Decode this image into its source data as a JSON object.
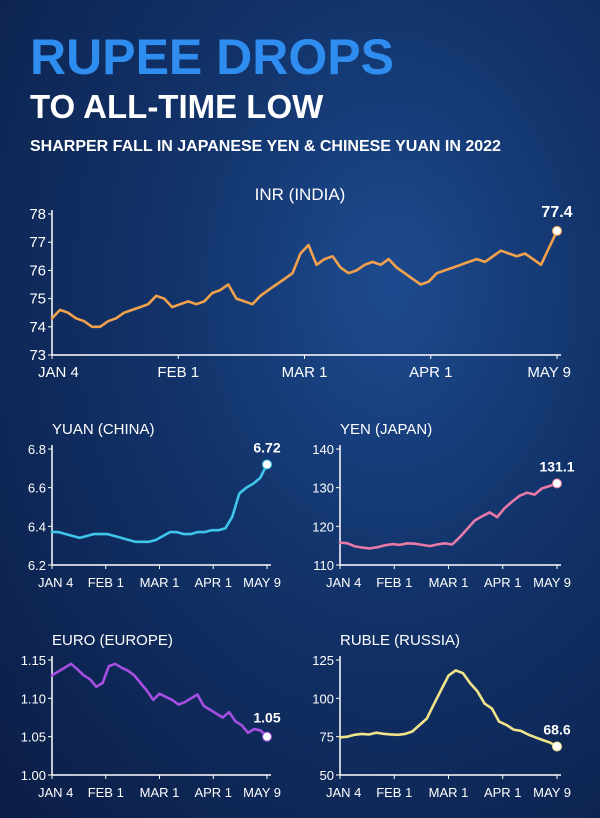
{
  "header": {
    "title": "RUPEE DROPS",
    "subtitle": "TO ALL-TIME LOW",
    "tagline": "SHARPER FALL IN JAPANESE YEN & CHINESE YUAN IN 2022"
  },
  "chart_data": [
    {
      "type": "line",
      "title": "INR (INDIA)",
      "color": "#f2a24c",
      "ylim": [
        73,
        78
      ],
      "yticks": [
        73,
        74,
        75,
        76,
        77,
        78
      ],
      "xticks": [
        "JAN 4",
        "FEB 1",
        "MAR 1",
        "APR 1",
        "MAY 9"
      ],
      "end_label": "77.4",
      "values": [
        74.3,
        74.6,
        74.5,
        74.3,
        74.2,
        74.0,
        74.0,
        74.2,
        74.3,
        74.5,
        74.6,
        74.7,
        74.8,
        75.1,
        75.0,
        74.7,
        74.8,
        74.9,
        74.8,
        74.9,
        75.2,
        75.3,
        75.5,
        75.0,
        74.9,
        74.8,
        75.1,
        75.3,
        75.5,
        75.7,
        75.9,
        76.6,
        76.9,
        76.2,
        76.4,
        76.5,
        76.1,
        75.9,
        76.0,
        76.2,
        76.3,
        76.2,
        76.4,
        76.1,
        75.9,
        75.7,
        75.5,
        75.6,
        75.9,
        76.0,
        76.1,
        76.2,
        76.3,
        76.4,
        76.3,
        76.5,
        76.7,
        76.6,
        76.5,
        76.6,
        76.4,
        76.2,
        76.8,
        77.4
      ]
    },
    {
      "type": "line",
      "title": "YUAN (CHINA)",
      "color": "#3fc6ea",
      "ylim": [
        6.2,
        6.8
      ],
      "yticks": [
        6.2,
        6.4,
        6.6,
        6.8
      ],
      "xticks": [
        "JAN 4",
        "FEB 1",
        "MAR 1",
        "APR 1",
        "MAY 9"
      ],
      "end_label": "6.72",
      "values": [
        6.37,
        6.37,
        6.36,
        6.35,
        6.34,
        6.35,
        6.36,
        6.36,
        6.36,
        6.35,
        6.34,
        6.33,
        6.32,
        6.32,
        6.32,
        6.33,
        6.35,
        6.37,
        6.37,
        6.36,
        6.36,
        6.37,
        6.37,
        6.38,
        6.38,
        6.39,
        6.45,
        6.57,
        6.6,
        6.62,
        6.65,
        6.72
      ]
    },
    {
      "type": "line",
      "title": "YEN (JAPAN)",
      "color": "#e97aa8",
      "ylim": [
        110,
        140
      ],
      "yticks": [
        110,
        120,
        130,
        140
      ],
      "xticks": [
        "JAN 4",
        "FEB 1",
        "MAR 1",
        "APR 1",
        "MAY 9"
      ],
      "end_label": "131.1",
      "values": [
        115.8,
        115.6,
        114.8,
        114.5,
        114.3,
        114.6,
        115.1,
        115.4,
        115.2,
        115.6,
        115.5,
        115.2,
        114.9,
        115.3,
        115.6,
        115.3,
        117.2,
        119.3,
        121.5,
        122.6,
        123.6,
        122.4,
        124.7,
        126.4,
        127.9,
        128.7,
        128.2,
        129.8,
        130.4,
        131.1
      ]
    },
    {
      "type": "line",
      "title": "EURO (EUROPE)",
      "color": "#a64fe3",
      "ylim": [
        1.0,
        1.15
      ],
      "yticks": [
        1.0,
        1.05,
        1.1,
        1.15
      ],
      "xticks": [
        "JAN 4",
        "FEB 1",
        "MAR 1",
        "APR 1",
        "MAY 9"
      ],
      "end_label": "1.05",
      "values": [
        1.13,
        1.135,
        1.14,
        1.145,
        1.138,
        1.13,
        1.125,
        1.115,
        1.12,
        1.142,
        1.145,
        1.14,
        1.136,
        1.13,
        1.12,
        1.11,
        1.098,
        1.106,
        1.102,
        1.098,
        1.092,
        1.095,
        1.1,
        1.105,
        1.09,
        1.085,
        1.08,
        1.075,
        1.082,
        1.07,
        1.065,
        1.055,
        1.06,
        1.058,
        1.05
      ]
    },
    {
      "type": "line",
      "title": "RUBLE (RUSSIA)",
      "color": "#f0e48a",
      "ylim": [
        50,
        125
      ],
      "yticks": [
        50,
        75,
        100,
        125
      ],
      "xticks": [
        "JAN 4",
        "FEB 1",
        "MAR 1",
        "APR 1",
        "MAY 9"
      ],
      "end_label": "68.6",
      "values": [
        74.5,
        75.0,
        76.2,
        76.8,
        76.4,
        77.6,
        76.9,
        76.5,
        76.2,
        76.8,
        78.4,
        82.6,
        86.8,
        96.3,
        105.7,
        114.8,
        118.2,
        116.4,
        109.8,
        104.6,
        96.5,
        93.4,
        84.8,
        82.7,
        79.6,
        78.8,
        76.4,
        74.6,
        72.8,
        71.2,
        68.6
      ]
    }
  ]
}
